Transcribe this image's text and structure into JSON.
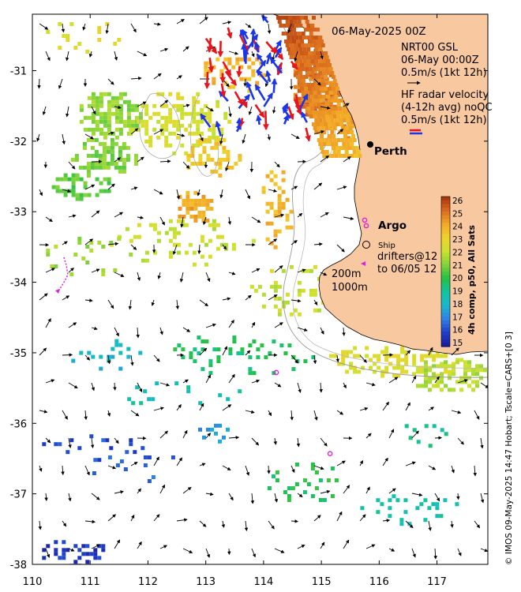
{
  "map": {
    "title": "06-May-2025 00Z",
    "lon_range": [
      110,
      117.88
    ],
    "lat_range": [
      -38,
      -30.2
    ],
    "x_ticks": [
      {
        "v": 110,
        "label": "110"
      },
      {
        "v": 111,
        "label": "111"
      },
      {
        "v": 112,
        "label": "112"
      },
      {
        "v": 113,
        "label": "113"
      },
      {
        "v": 114,
        "label": "114"
      },
      {
        "v": 115,
        "label": "115"
      },
      {
        "v": 116,
        "label": "116"
      },
      {
        "v": 117,
        "label": "117"
      }
    ],
    "y_ticks": [
      {
        "v": -31,
        "label": "-31"
      },
      {
        "v": -32,
        "label": "-32"
      },
      {
        "v": -33,
        "label": "-33"
      },
      {
        "v": -34,
        "label": "-34"
      },
      {
        "v": -35,
        "label": "-35"
      },
      {
        "v": -36,
        "label": "-36"
      },
      {
        "v": -37,
        "label": "-37"
      },
      {
        "v": -38,
        "label": "-38"
      }
    ],
    "land_color": "#f8c8a0",
    "legend": {
      "gsl_line1": "NRT00 GSL",
      "gsl_line2": "06-May 00:00Z",
      "gsl_scale": "0.5m/s (1kt 12h)",
      "hf_line1": "HF radar velocity",
      "hf_line2": "(4-12h avg) noQC",
      "hf_scale": "0.5m/s (1kt 12h)",
      "city": "Perth",
      "argo": "Argo",
      "ship": "Ship",
      "drifters_line1": "drifters@12",
      "drifters_line2": "to 06/05 12",
      "isobath_200": "200m",
      "isobath_1000": "1000m"
    },
    "colorbar": {
      "title": "4h comp, p50, All Sats",
      "ticks": [
        "15",
        "16",
        "17",
        "18",
        "19",
        "20",
        "21",
        "22",
        "23",
        "24",
        "25",
        "26"
      ],
      "range": [
        15,
        26
      ],
      "stops": [
        "#1a1a9c",
        "#1f3ec8",
        "#2f7fe6",
        "#19b8cf",
        "#12c3a0",
        "#22c144",
        "#82d33a",
        "#cde230",
        "#f0d22a",
        "#f3a727",
        "#d9681c",
        "#a3320f"
      ]
    },
    "credit": "© IMOS 09-May-2025 14:47 Hobart; Tscale=CARS+[0 3]",
    "markers": {
      "perth": [
        115.86,
        -31.95
      ],
      "argo": [
        [
          115.75,
          -33.12
        ],
        [
          114.22,
          -35.28
        ],
        [
          115.15,
          -36.43
        ]
      ],
      "hf_red": "#e8141c",
      "hf_blue": "#1c35e8",
      "drifter": "#e020e0",
      "argo_color": "#e020e0"
    },
    "sst_patches": [
      {
        "lon": 111.3,
        "lat": -31.6,
        "rx": 0.55,
        "ry": 0.35,
        "value": 21.2,
        "density": 0.85
      },
      {
        "lon": 111.2,
        "lat": -32.2,
        "rx": 0.6,
        "ry": 0.3,
        "value": 21.0,
        "density": 0.75
      },
      {
        "lon": 112.5,
        "lat": -31.7,
        "rx": 0.9,
        "ry": 0.45,
        "value": 22.3,
        "density": 0.55
      },
      {
        "lon": 113.1,
        "lat": -32.2,
        "rx": 0.5,
        "ry": 0.3,
        "value": 23.2,
        "density": 0.55
      },
      {
        "lon": 113.5,
        "lat": -31.0,
        "rx": 0.6,
        "ry": 0.3,
        "value": 23.6,
        "density": 0.4
      },
      {
        "lon": 112.8,
        "lat": -32.9,
        "rx": 0.35,
        "ry": 0.25,
        "value": 23.9,
        "density": 0.85
      },
      {
        "lon": 110.8,
        "lat": -30.5,
        "rx": 0.7,
        "ry": 0.3,
        "value": 22.6,
        "density": 0.15
      },
      {
        "lon": 114.9,
        "lat": -31.2,
        "rx": 0.45,
        "ry": 0.5,
        "value": 24.8,
        "density": 0.9
      },
      {
        "lon": 115.2,
        "lat": -30.6,
        "rx": 0.4,
        "ry": 0.3,
        "value": 25.5,
        "density": 0.8
      },
      {
        "lon": 115.6,
        "lat": -31.6,
        "rx": 0.3,
        "ry": 0.4,
        "value": 24.2,
        "density": 0.8
      },
      {
        "lon": 114.2,
        "lat": -32.9,
        "rx": 0.3,
        "ry": 0.6,
        "value": 23.6,
        "density": 0.35
      },
      {
        "lon": 112.5,
        "lat": -33.4,
        "rx": 1.3,
        "ry": 0.35,
        "value": 22.0,
        "density": 0.2
      },
      {
        "lon": 111.0,
        "lat": -33.6,
        "rx": 0.9,
        "ry": 0.3,
        "value": 21.3,
        "density": 0.12
      },
      {
        "lon": 110.8,
        "lat": -32.6,
        "rx": 0.6,
        "ry": 0.2,
        "value": 20.6,
        "density": 0.45
      },
      {
        "lon": 114.6,
        "lat": -34.1,
        "rx": 0.9,
        "ry": 0.4,
        "value": 22.0,
        "density": 0.25
      },
      {
        "lon": 116.3,
        "lat": -35.1,
        "rx": 1.3,
        "ry": 0.25,
        "value": 22.4,
        "density": 0.45
      },
      {
        "lon": 117.2,
        "lat": -35.3,
        "rx": 0.7,
        "ry": 0.25,
        "value": 21.6,
        "density": 0.55
      },
      {
        "lon": 113.6,
        "lat": -35.0,
        "rx": 1.3,
        "ry": 0.3,
        "value": 19.6,
        "density": 0.22
      },
      {
        "lon": 111.3,
        "lat": -35.0,
        "rx": 0.9,
        "ry": 0.25,
        "value": 18.2,
        "density": 0.15
      },
      {
        "lon": 112.5,
        "lat": -35.55,
        "rx": 1.2,
        "ry": 0.2,
        "value": 18.7,
        "density": 0.1
      },
      {
        "lon": 111.0,
        "lat": -36.3,
        "rx": 0.9,
        "ry": 0.2,
        "value": 16.2,
        "density": 0.2
      },
      {
        "lon": 111.8,
        "lat": -36.6,
        "rx": 0.9,
        "ry": 0.2,
        "value": 16.6,
        "density": 0.12
      },
      {
        "lon": 113.1,
        "lat": -36.1,
        "rx": 0.3,
        "ry": 0.15,
        "value": 17.4,
        "density": 0.3
      },
      {
        "lon": 114.7,
        "lat": -36.8,
        "rx": 0.7,
        "ry": 0.3,
        "value": 19.8,
        "density": 0.3
      },
      {
        "lon": 116.4,
        "lat": -37.2,
        "rx": 1.0,
        "ry": 0.25,
        "value": 18.8,
        "density": 0.18
      },
      {
        "lon": 110.7,
        "lat": -37.8,
        "rx": 0.6,
        "ry": 0.2,
        "value": 15.8,
        "density": 0.35
      },
      {
        "lon": 116.9,
        "lat": -36.1,
        "rx": 0.8,
        "ry": 0.2,
        "value": 19.0,
        "density": 0.12
      }
    ]
  }
}
